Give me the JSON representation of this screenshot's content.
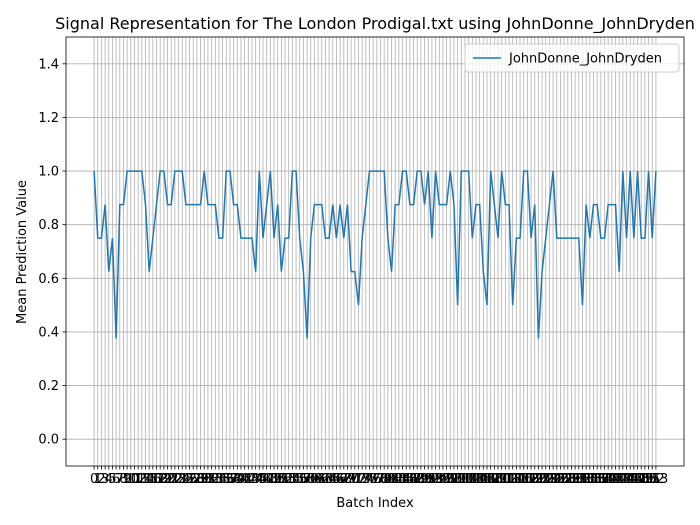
{
  "chart_data": {
    "type": "line",
    "title": "Signal Representation for The London Prodigal.txt using JohnDonne_JohnDryden",
    "xlabel": "Batch Index",
    "ylabel": "Mean Prediction Value",
    "x": [
      0,
      1,
      2,
      3,
      4,
      5,
      6,
      7,
      8,
      9,
      10,
      11,
      12,
      13,
      14,
      15,
      16,
      17,
      18,
      19,
      20,
      21,
      22,
      23,
      24,
      25,
      26,
      27,
      28,
      29,
      30,
      31,
      32,
      33,
      34,
      35,
      36,
      37,
      38,
      39,
      40,
      41,
      42,
      43,
      44,
      45,
      46,
      47,
      48,
      49,
      50,
      51,
      52,
      53,
      54,
      55,
      56,
      57,
      58,
      59,
      60,
      61,
      62,
      63,
      64,
      65,
      66,
      67,
      68,
      69,
      70,
      71,
      72,
      73,
      74,
      75,
      76,
      77,
      78,
      79,
      80,
      81,
      82,
      83,
      84,
      85,
      86,
      87,
      88,
      89,
      90,
      91,
      92,
      93,
      94,
      95,
      96,
      97,
      98,
      99,
      100,
      101,
      102,
      103,
      104,
      105,
      106,
      107,
      108,
      109,
      110,
      111,
      112,
      113,
      114,
      115,
      116,
      117,
      118,
      119,
      120,
      121,
      122,
      123,
      124,
      125,
      126,
      127,
      128,
      129,
      130,
      131,
      132,
      133,
      134,
      135,
      136,
      137,
      138,
      139,
      140,
      141,
      142,
      143,
      144,
      145,
      146,
      147,
      148,
      149,
      150,
      151,
      152,
      153
    ],
    "series": [
      {
        "name": "JohnDonne_JohnDryden",
        "color": "#1f77b4",
        "values": [
          1,
          0.75,
          0.75,
          0.875,
          0.625,
          0.75,
          0.375,
          0.875,
          0.875,
          1,
          1,
          1,
          1,
          1,
          0.875,
          0.625,
          0.75,
          0.875,
          1,
          1,
          0.875,
          0.875,
          1,
          1,
          1,
          0.875,
          0.875,
          0.875,
          0.875,
          0.875,
          1,
          0.875,
          0.875,
          0.875,
          0.75,
          0.75,
          1,
          1,
          0.875,
          0.875,
          0.75,
          0.75,
          0.75,
          0.75,
          0.625,
          1,
          0.75,
          0.875,
          1,
          0.75,
          0.875,
          0.625,
          0.75,
          0.75,
          1,
          1,
          0.75,
          0.625,
          0.375,
          0.75,
          0.875,
          0.875,
          0.875,
          0.75,
          0.75,
          0.875,
          0.75,
          0.875,
          0.75,
          0.875,
          0.625,
          0.625,
          0.5,
          0.75,
          0.875,
          1,
          1,
          1,
          1,
          1,
          0.75,
          0.625,
          0.875,
          0.875,
          1,
          1,
          0.875,
          0.875,
          1,
          1,
          0.875,
          1,
          0.75,
          1,
          0.875,
          0.875,
          0.875,
          1,
          0.875,
          0.5,
          1,
          1,
          1,
          0.75,
          0.875,
          0.875,
          0.625,
          0.5,
          1,
          0.875,
          0.75,
          1,
          0.875,
          0.875,
          0.5,
          0.75,
          0.75,
          1,
          1,
          0.75,
          0.875,
          0.375,
          0.625,
          0.75,
          0.875,
          1,
          0.75,
          0.75,
          0.75,
          0.75,
          0.75,
          0.75,
          0.75,
          0.5,
          0.875,
          0.75,
          0.875,
          0.875,
          0.75,
          0.75,
          0.875,
          0.875,
          0.875,
          0.625,
          1,
          0.75,
          1,
          0.75,
          1,
          0.75,
          0.75,
          1,
          0.75,
          1
        ]
      }
    ],
    "xlim": [
      -7.65,
      160.65
    ],
    "xticks": [
      0,
      1,
      2,
      3,
      4,
      5,
      6,
      7,
      8,
      9,
      10,
      11,
      12,
      13,
      14,
      15,
      16,
      17,
      18,
      19,
      20,
      21,
      22,
      23,
      24,
      25,
      26,
      27,
      28,
      29,
      30,
      31,
      32,
      33,
      34,
      35,
      36,
      37,
      38,
      39,
      40,
      41,
      42,
      43,
      44,
      45,
      46,
      47,
      48,
      49,
      50,
      51,
      52,
      53,
      54,
      55,
      56,
      57,
      58,
      59,
      60,
      61,
      62,
      63,
      64,
      65,
      66,
      67,
      68,
      69,
      70,
      71,
      72,
      73,
      74,
      75,
      76,
      77,
      78,
      79,
      80,
      81,
      82,
      83,
      84,
      85,
      86,
      87,
      88,
      89,
      90,
      91,
      92,
      93,
      94,
      95,
      96,
      97,
      98,
      99,
      100,
      101,
      102,
      103,
      104,
      105,
      106,
      107,
      108,
      109,
      110,
      111,
      112,
      113,
      114,
      115,
      116,
      117,
      118,
      119,
      120,
      121,
      122,
      123,
      124,
      125,
      126,
      127,
      128,
      129,
      130,
      131,
      132,
      133,
      134,
      135,
      136,
      137,
      138,
      139,
      140,
      141,
      142,
      143,
      144,
      145,
      146,
      147,
      148,
      149,
      150,
      151,
      152,
      153
    ],
    "ylim": [
      -0.1,
      1.5
    ],
    "yticks": [
      {
        "value": 0,
        "label": "0.0"
      },
      {
        "value": 0.2,
        "label": "0.2"
      },
      {
        "value": 0.4,
        "label": "0.4"
      },
      {
        "value": 0.6,
        "label": "0.6"
      },
      {
        "value": 0.8,
        "label": "0.8"
      },
      {
        "value": 1,
        "label": "1.0"
      },
      {
        "value": 1.2,
        "label": "1.2"
      },
      {
        "value": 1.4,
        "label": "1.4"
      }
    ],
    "grid": true,
    "legend": "upper right"
  }
}
